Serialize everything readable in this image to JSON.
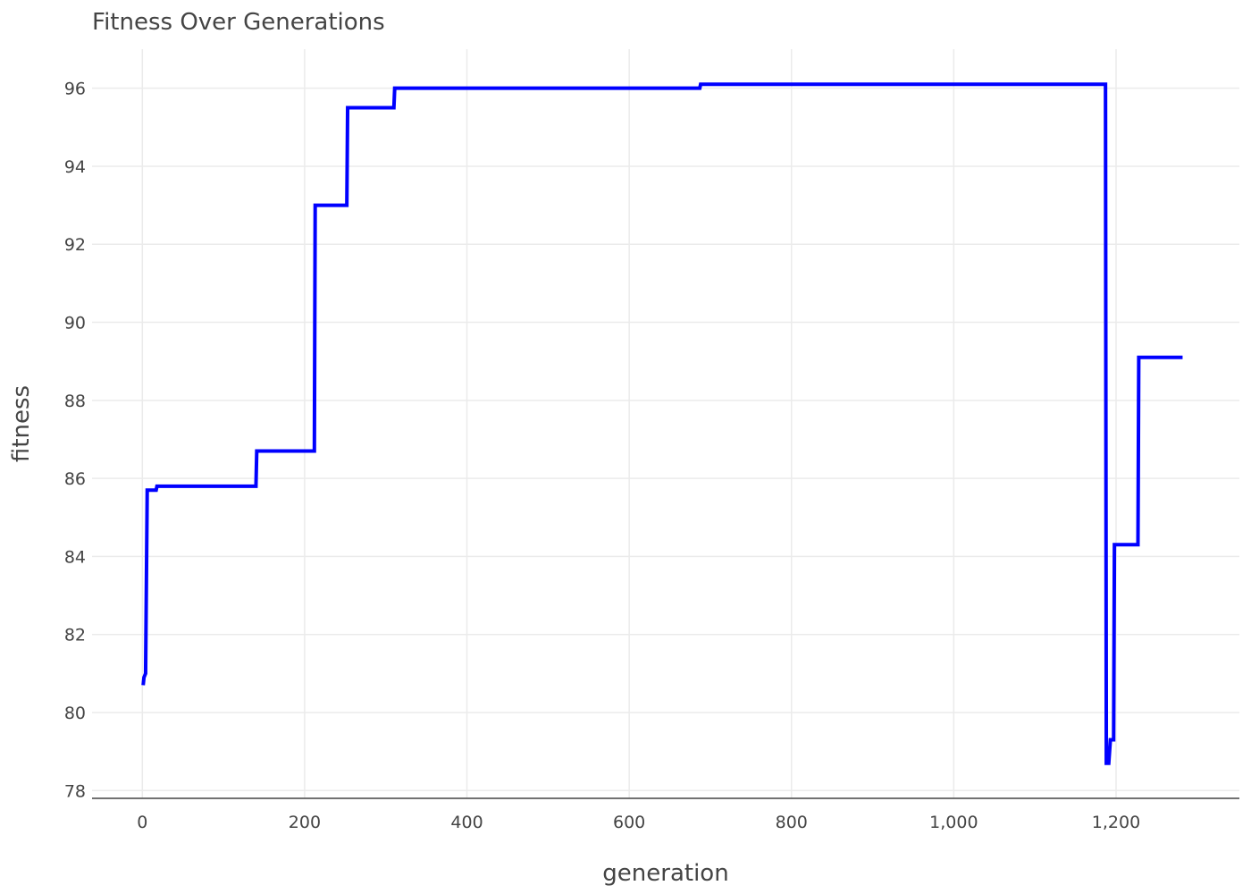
{
  "chart_data": {
    "type": "line",
    "title": "Fitness Over Generations",
    "xlabel": "generation",
    "ylabel": "fitness",
    "xlim": [
      -62,
      1352
    ],
    "ylim": [
      77.8,
      97.0
    ],
    "x_ticks": [
      0,
      200,
      400,
      600,
      800,
      1000,
      1200
    ],
    "x_tick_labels": [
      "0",
      "200",
      "400",
      "600",
      "800",
      "1,000",
      "1,200"
    ],
    "y_ticks": [
      78,
      80,
      82,
      84,
      86,
      88,
      90,
      92,
      94,
      96
    ],
    "y_tick_labels": [
      "78",
      "80",
      "82",
      "84",
      "86",
      "88",
      "90",
      "92",
      "94",
      "96"
    ],
    "grid": true,
    "line_shape": "step",
    "series": [
      {
        "color": "#0000ff",
        "x": [
          1,
          2,
          4,
          6,
          17,
          18,
          140,
          141,
          212,
          213,
          252,
          253,
          310,
          311,
          687,
          688,
          1187,
          1188,
          1191,
          1193,
          1197,
          1198,
          1227,
          1228,
          1282
        ],
        "y": [
          80.7,
          80.9,
          81.0,
          85.7,
          85.7,
          85.8,
          85.8,
          86.7,
          86.7,
          93.0,
          93.0,
          95.5,
          95.5,
          96.0,
          96.0,
          96.1,
          96.1,
          78.7,
          78.7,
          79.3,
          79.3,
          84.3,
          84.3,
          89.1,
          89.1
        ]
      }
    ]
  }
}
